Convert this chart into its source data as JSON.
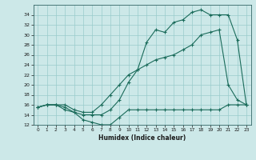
{
  "xlabel": "Humidex (Indice chaleur)",
  "bg_color": "#cce8e8",
  "grid_color": "#99cccc",
  "line_color": "#1a6b5a",
  "xlim": [
    -0.5,
    23.5
  ],
  "ylim": [
    12,
    35
  ],
  "yticks": [
    12,
    14,
    16,
    18,
    20,
    22,
    24,
    26,
    28,
    30,
    32,
    34
  ],
  "xticks": [
    0,
    1,
    2,
    3,
    4,
    5,
    6,
    7,
    8,
    9,
    10,
    11,
    12,
    13,
    14,
    15,
    16,
    17,
    18,
    19,
    20,
    21,
    22,
    23
  ],
  "line1_x": [
    0,
    1,
    2,
    3,
    4,
    5,
    6,
    7,
    8,
    9,
    10,
    11,
    12,
    13,
    14,
    15,
    16,
    17,
    18,
    19,
    20,
    21,
    22,
    23
  ],
  "line1_y": [
    15.5,
    16,
    16,
    15,
    14.5,
    13,
    12.5,
    12,
    12,
    13.5,
    15,
    15,
    15,
    15,
    15,
    15,
    15,
    15,
    15,
    15,
    15,
    16,
    16,
    16
  ],
  "line2_x": [
    0,
    1,
    2,
    3,
    4,
    5,
    6,
    7,
    8,
    9,
    10,
    11,
    12,
    13,
    14,
    15,
    16,
    17,
    18,
    19,
    20,
    21,
    22,
    23
  ],
  "line2_y": [
    15.5,
    16,
    16,
    15.5,
    14.5,
    14,
    14,
    14,
    15,
    17,
    20.5,
    23,
    24,
    25,
    25.5,
    26,
    27,
    28,
    30,
    30.5,
    31,
    20,
    17,
    16
  ],
  "line3_x": [
    0,
    1,
    2,
    3,
    4,
    5,
    6,
    7,
    8,
    9,
    10,
    11,
    12,
    13,
    14,
    15,
    16,
    17,
    18,
    19,
    20,
    21,
    22,
    23
  ],
  "line3_y": [
    15.5,
    16,
    16,
    16,
    15,
    14.5,
    14.5,
    16,
    18,
    20,
    22,
    23,
    28.5,
    31,
    30.5,
    32.5,
    33,
    34.5,
    35,
    34,
    34,
    34,
    29,
    16
  ]
}
